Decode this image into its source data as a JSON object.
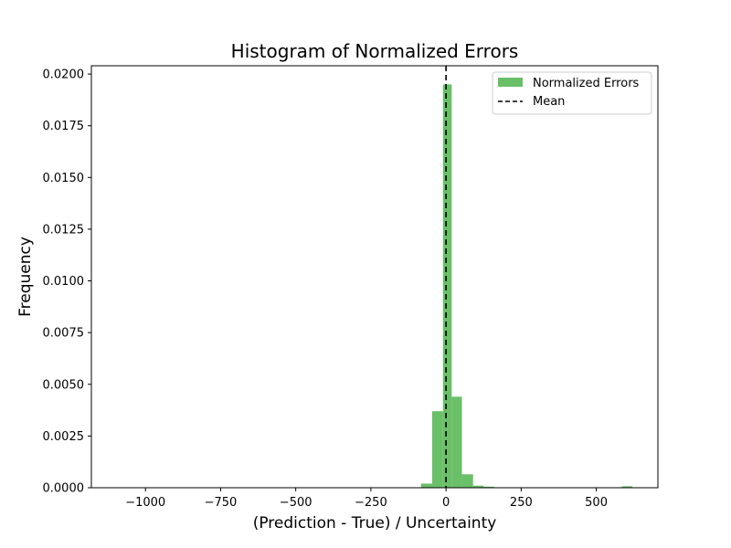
{
  "chart_data": {
    "type": "bar",
    "title": "Histogram of Normalized Errors",
    "xlabel": "(Prediction - True) / Uncertainty",
    "ylabel": "Frequency",
    "xlim": [
      -1180,
      705
    ],
    "ylim": [
      0,
      0.0204
    ],
    "xticks": [
      -1000,
      -750,
      -500,
      -250,
      0,
      250,
      500
    ],
    "xtick_labels": [
      "−1000",
      "−750",
      "−500",
      "−250",
      "0",
      "250",
      "500"
    ],
    "yticks": [
      0,
      0.0025,
      0.005,
      0.0075,
      0.01,
      0.0125,
      0.015,
      0.0175,
      0.02
    ],
    "ytick_labels": [
      "0.0000",
      "0.0025",
      "0.0050",
      "0.0075",
      "0.0100",
      "0.0125",
      "0.0150",
      "0.0175",
      "0.0200"
    ],
    "grid": false,
    "legend_position": "top-right",
    "series": [
      {
        "name": "Normalized Errors",
        "kind": "histogram",
        "color": "#6abf69",
        "bins": [
          {
            "x0": -83,
            "x1": -46,
            "value": 0.0002
          },
          {
            "x0": -46,
            "x1": -10,
            "value": 0.0037
          },
          {
            "x0": -10,
            "x1": 19,
            "value": 0.0195
          },
          {
            "x0": 19,
            "x1": 53,
            "value": 0.0044
          },
          {
            "x0": 53,
            "x1": 90,
            "value": 0.00065
          },
          {
            "x0": 90,
            "x1": 125,
            "value": 0.0001
          },
          {
            "x0": 125,
            "x1": 160,
            "value": 5e-05
          },
          {
            "x0": 585,
            "x1": 620,
            "value": 7e-05
          }
        ]
      },
      {
        "name": "Mean",
        "kind": "vline",
        "color": "#000000",
        "x": 0
      }
    ]
  }
}
